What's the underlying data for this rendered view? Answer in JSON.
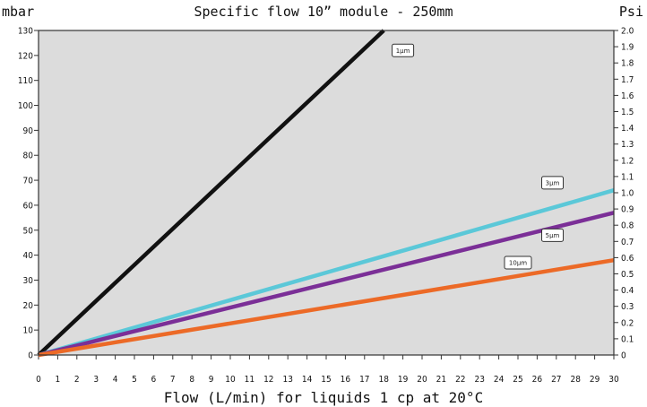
{
  "chart_data": {
    "type": "line",
    "title": "Specific flow 10” module - 250mm",
    "xlabel": "Flow (L/min) for liquids 1 cp at 20°C",
    "ylabel": "mbar",
    "y2label": "Psi",
    "xlim": [
      0,
      30
    ],
    "ylim": [
      0,
      130
    ],
    "y2lim": [
      0,
      2.0
    ],
    "x_ticks": [
      0,
      1,
      2,
      3,
      4,
      5,
      6,
      7,
      8,
      9,
      10,
      11,
      12,
      13,
      14,
      15,
      16,
      17,
      18,
      19,
      20,
      21,
      22,
      23,
      24,
      25,
      26,
      27,
      28,
      29,
      30
    ],
    "y_ticks": [
      0,
      10,
      20,
      30,
      40,
      50,
      60,
      70,
      80,
      90,
      100,
      110,
      120,
      130
    ],
    "y2_ticks": [
      "0",
      "0.1",
      "0.2",
      "0.3",
      "0.4",
      "0.5",
      "0.6",
      "0.7",
      "0.8",
      "0.9",
      "1.0",
      "1.1",
      "1.2",
      "1.3",
      "1.4",
      "1.5",
      "1.6",
      "1.7",
      "1.8",
      "1.9",
      "2.0"
    ],
    "grid": false,
    "colors": {
      "plot_bg": "#dcdcdc",
      "frame": "#333333"
    },
    "series": [
      {
        "label": "1µm",
        "color": "#111111",
        "x": [
          0,
          18
        ],
        "y": [
          0,
          130
        ]
      },
      {
        "label": "3µm",
        "color": "#5bc8d8",
        "x": [
          0,
          30
        ],
        "y": [
          0,
          66
        ]
      },
      {
        "label": "5µm",
        "color": "#7b2f97",
        "x": [
          0,
          30
        ],
        "y": [
          0,
          57
        ]
      },
      {
        "label": "10µm",
        "color": "#ec6a27",
        "x": [
          0,
          30
        ],
        "y": [
          0,
          38
        ]
      }
    ],
    "annotations": [
      {
        "text": "1µm",
        "x": 19.0,
        "y": 122
      },
      {
        "text": "3µm",
        "x": 26.8,
        "y": 69
      },
      {
        "text": "5µm",
        "x": 26.8,
        "y": 48
      },
      {
        "text": "10µm",
        "x": 25.0,
        "y": 37
      }
    ]
  }
}
